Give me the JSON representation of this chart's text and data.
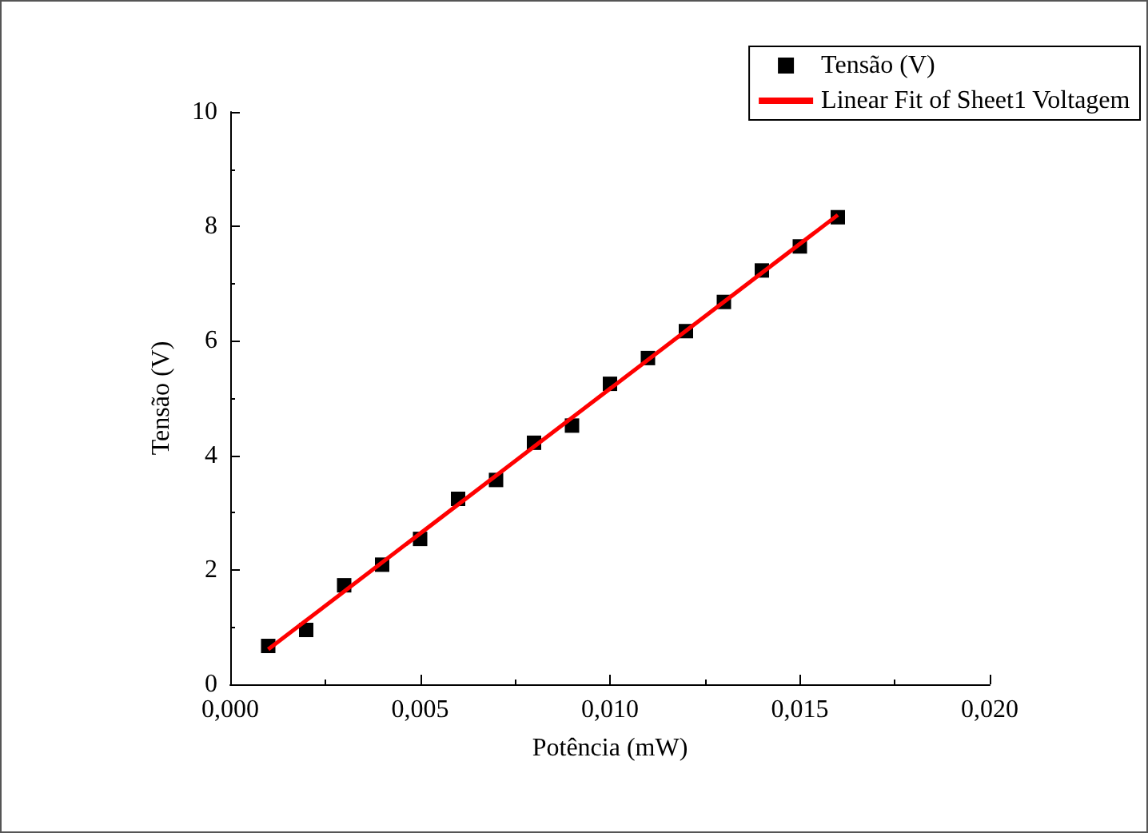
{
  "chart_data": {
    "type": "scatter",
    "xlabel": "Potência (mW)",
    "ylabel": "Tensão (V)",
    "xlim": [
      0,
      0.02
    ],
    "ylim": [
      0,
      10
    ],
    "xticks": [
      {
        "value": 0,
        "label": "0,000"
      },
      {
        "value": 0.005,
        "label": "0,005"
      },
      {
        "value": 0.01,
        "label": "0,010"
      },
      {
        "value": 0.015,
        "label": "0,015"
      },
      {
        "value": 0.02,
        "label": "0,020"
      }
    ],
    "yticks": [
      0,
      2,
      4,
      6,
      8,
      10
    ],
    "grid": false,
    "legend": "top right",
    "series": [
      {
        "name": "Tensão (V)",
        "marker": "square",
        "color": "#000000",
        "x": [
          0.001,
          0.002,
          0.003,
          0.004,
          0.005,
          0.006,
          0.007,
          0.008,
          0.009,
          0.01,
          0.011,
          0.012,
          0.013,
          0.014,
          0.015,
          0.016
        ],
        "values": [
          0.67,
          0.95,
          1.73,
          2.09,
          2.54,
          3.24,
          3.57,
          4.22,
          4.52,
          5.25,
          5.7,
          6.17,
          6.68,
          7.23,
          7.65,
          8.16
        ]
      },
      {
        "name": "Linear Fit of Sheet1 Voltagem",
        "type": "line",
        "marker": "none",
        "line_style": "solid",
        "color": "#ff0000",
        "x": [
          0.001,
          0.016
        ],
        "values": [
          0.61,
          8.2
        ]
      }
    ]
  }
}
